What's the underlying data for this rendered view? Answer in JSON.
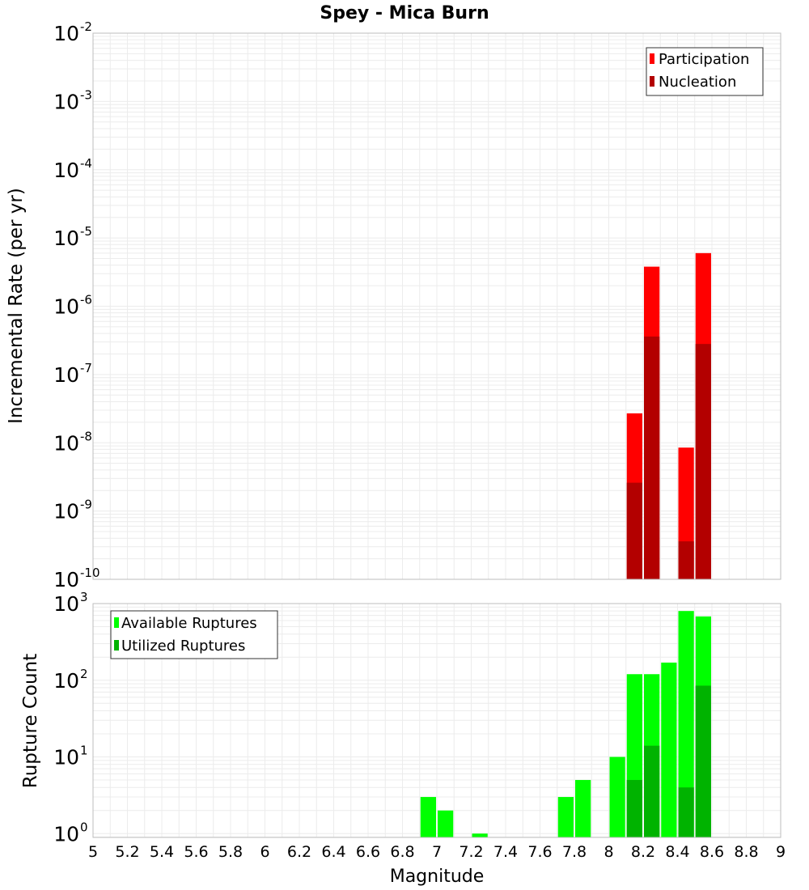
{
  "title": "Spey - Mica Burn",
  "colors": {
    "participation": "#ff0000",
    "nucleation": "#b30000",
    "available": "#00ff00",
    "utilized": "#00b300",
    "grid": "#ececec",
    "frame": "#bdbdbd"
  },
  "chart_data": [
    {
      "type": "bar",
      "scale": "log",
      "ylabel": "Incremental Rate (per yr)",
      "ylim_exponents": [
        -10,
        -2
      ],
      "yticks": [
        {
          "base": "10",
          "exp": "-2"
        },
        {
          "base": "10",
          "exp": "-3"
        },
        {
          "base": "10",
          "exp": "-4"
        },
        {
          "base": "10",
          "exp": "-5"
        },
        {
          "base": "10",
          "exp": "-6"
        },
        {
          "base": "10",
          "exp": "-7"
        },
        {
          "base": "10",
          "exp": "-8"
        },
        {
          "base": "10",
          "exp": "-9"
        },
        {
          "base": "10",
          "exp": "-10"
        }
      ],
      "legend": [
        "Participation",
        "Nucleation"
      ],
      "legend_position": "top-right",
      "x": [
        8.15,
        8.25,
        8.45,
        8.55
      ],
      "series": [
        {
          "name": "Participation",
          "values": [
            2.7e-08,
            3.8e-06,
            8.5e-09,
            6e-06
          ]
        },
        {
          "name": "Nucleation",
          "values": [
            2.6e-09,
            3.6e-07,
            3.6e-10,
            2.8e-07
          ]
        }
      ]
    },
    {
      "type": "bar",
      "scale": "log",
      "ylabel": "Rupture Count",
      "ylim_exponents": [
        -0.05,
        3
      ],
      "yticks": [
        {
          "base": "10",
          "exp": "3"
        },
        {
          "base": "10",
          "exp": "2"
        },
        {
          "base": "10",
          "exp": "1"
        },
        {
          "base": "10",
          "exp": "0"
        }
      ],
      "legend": [
        "Available Ruptures",
        "Utilized Ruptures"
      ],
      "legend_position": "top-left",
      "x": [
        6.95,
        7.05,
        7.25,
        7.75,
        7.85,
        8.05,
        8.15,
        8.25,
        8.35,
        8.45,
        8.55
      ],
      "series": [
        {
          "name": "Available Ruptures",
          "values": [
            3,
            2,
            1,
            3,
            5,
            10,
            120,
            120,
            170,
            800,
            680
          ]
        },
        {
          "name": "Utilized Ruptures",
          "values": [
            null,
            null,
            null,
            null,
            null,
            null,
            5,
            14,
            null,
            4,
            85
          ]
        }
      ]
    }
  ],
  "xaxis": {
    "label": "Magnitude",
    "min": 5,
    "max": 9,
    "ticks": [
      "5",
      "5.2",
      "5.4",
      "5.6",
      "5.8",
      "6",
      "6.2",
      "6.4",
      "6.6",
      "6.8",
      "7",
      "7.2",
      "7.4",
      "7.6",
      "7.8",
      "8",
      "8.2",
      "8.4",
      "8.6",
      "8.8",
      "9"
    ]
  }
}
